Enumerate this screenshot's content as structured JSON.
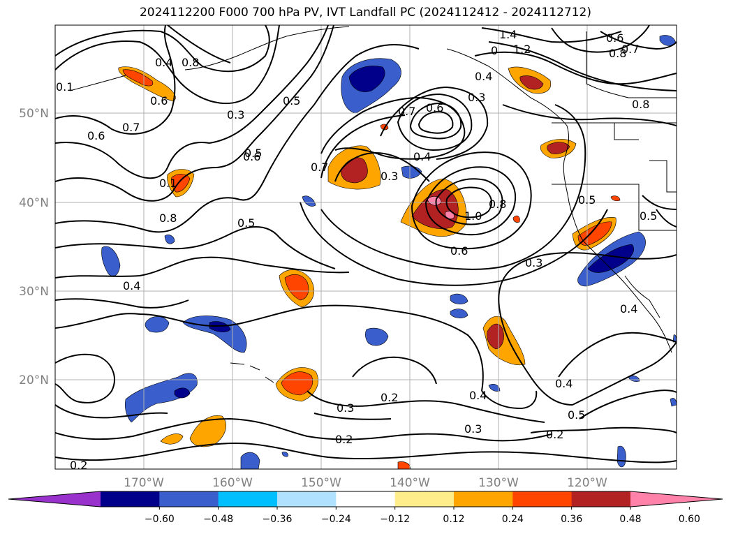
{
  "title": "2024112200 F000 700 hPa PV, IVT Landfall PC (2024112412 - 2024112712)",
  "lon_ticks": [
    "170°W",
    "160°W",
    "150°W",
    "140°W",
    "130°W",
    "120°W"
  ],
  "lat_ticks": [
    "50°N",
    "40°N",
    "30°N",
    "20°N"
  ],
  "contour_labels": [
    "1.4",
    "1.2",
    "0",
    "0.6",
    "0.7",
    "0.8",
    "0.4",
    "0.3",
    "0.7",
    "0.6",
    "0.5",
    "0.3",
    "0.8",
    "0.6",
    "0.7",
    "0.1",
    "0.6",
    "0.7",
    "0.4",
    "0.3",
    "0.1",
    "0.8",
    "0.5",
    "0.4",
    "0.8",
    "0.5",
    "0.6",
    "1.0",
    "0.8",
    "0.6",
    "0.3",
    "0.5",
    "0.5",
    "0.4",
    "0.4",
    "0.3",
    "0.2",
    "0.4",
    "0.4",
    "0.5",
    "0.3",
    "0.2",
    "0.2",
    "0.2"
  ],
  "colorbar": {
    "tick_labels": [
      "−0.60",
      "−0.48",
      "−0.36",
      "−0.24",
      "−0.12",
      "0.12",
      "0.24",
      "0.36",
      "0.48",
      "0.60"
    ],
    "colors": [
      "#9932cc",
      "#00008b",
      "#3a5fcd",
      "#00bfff",
      "#b0e2ff",
      "#ffffff",
      "#ffec8b",
      "#ffa500",
      "#ff4500",
      "#b22222",
      "#ff82ab"
    ]
  }
}
